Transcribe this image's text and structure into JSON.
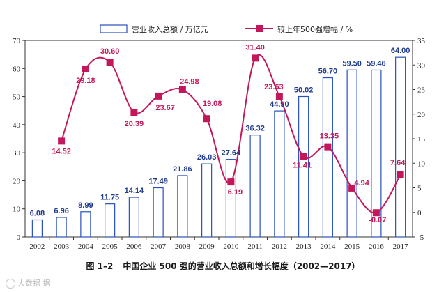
{
  "chart_data": {
    "type": "bar+line",
    "categories": [
      "2002",
      "2003",
      "2004",
      "2005",
      "2006",
      "2007",
      "2008",
      "2009",
      "2010",
      "2011",
      "2012",
      "2013",
      "2014",
      "2015",
      "2016",
      "2017"
    ],
    "series": [
      {
        "name": "营业收入总额 / 万亿元",
        "type": "bar",
        "axis": "left",
        "values": [
          6.08,
          6.96,
          8.99,
          11.75,
          14.14,
          17.49,
          21.86,
          26.03,
          27.64,
          36.32,
          44.9,
          50.02,
          56.7,
          59.5,
          59.46,
          64.0
        ],
        "labels": [
          "6.08",
          "6.96",
          "8.99",
          "11.75",
          "14.14",
          "17.49",
          "21.86",
          "26.03",
          "27.64",
          "36.32",
          "44.90",
          "50.02",
          "56.70",
          "59.50",
          "59.46",
          "64.00"
        ],
        "color": "#2a52be"
      },
      {
        "name": "较上年500强增幅 / %",
        "type": "line",
        "axis": "right",
        "values": [
          null,
          14.52,
          29.18,
          30.6,
          20.39,
          23.67,
          24.98,
          19.08,
          6.19,
          31.4,
          23.63,
          11.41,
          13.35,
          4.94,
          -0.07,
          7.64
        ],
        "labels": [
          "",
          "14.52",
          "29.18",
          "30.60",
          "20.39",
          "23.67",
          "24.98",
          "19.08",
          "6.19",
          "31.40",
          "23.63",
          "11.41",
          "13.35",
          "4.94",
          "-0.07",
          "7.64"
        ],
        "color": "#c2185b"
      }
    ],
    "ylim_left": [
      0,
      70
    ],
    "yticks_left": [
      0,
      10,
      20,
      30,
      40,
      50,
      60,
      70
    ],
    "ylim_right": [
      -5,
      35
    ],
    "yticks_right": [
      -5,
      0,
      5,
      10,
      15,
      20,
      25,
      30,
      35
    ],
    "legend_position": "top",
    "grid": false
  },
  "caption": {
    "figure_number": "图 1–2",
    "title": "中国企业 500 强的营业收入总额和增长幅度（2002—2017）"
  },
  "watermark": "大数据 据"
}
